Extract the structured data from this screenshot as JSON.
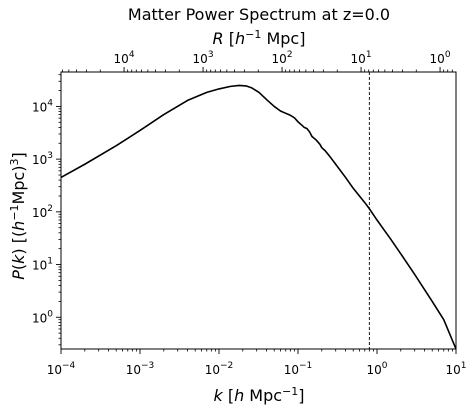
{
  "chart_data": {
    "type": "line",
    "title": "Matter Power Spectrum at z=0.0",
    "xlabel": {
      "base": "k [",
      "italic": "h",
      "rest": " Mpc",
      "sup": "−1",
      "end": "]"
    },
    "ylabel": {
      "a": "P(k) [(",
      "italic": "h",
      "sup1": "−1",
      "b": "Mpc)",
      "sup2": "3",
      "end": "]"
    },
    "top_xlabel": {
      "italic": "R",
      "a": " [",
      "italic2": "h",
      "sup": "−1",
      "b": " Mpc]"
    },
    "xscale": "log",
    "yscale": "log",
    "xlim": [
      0.0001,
      10
    ],
    "ylim": [
      0.25,
      45000
    ],
    "x_ticks": [
      {
        "value": 0.0001,
        "base": "10",
        "exp": "−4"
      },
      {
        "value": 0.001,
        "base": "10",
        "exp": "−3"
      },
      {
        "value": 0.01,
        "base": "10",
        "exp": "−2"
      },
      {
        "value": 0.1,
        "base": "10",
        "exp": "−1"
      },
      {
        "value": 1,
        "base": "10",
        "exp": "0"
      },
      {
        "value": 10,
        "base": "10",
        "exp": "1"
      }
    ],
    "y_ticks": [
      {
        "value": 1,
        "base": "10",
        "exp": "0"
      },
      {
        "value": 10,
        "base": "10",
        "exp": "1"
      },
      {
        "value": 100,
        "base": "10",
        "exp": "2"
      },
      {
        "value": 1000,
        "base": "10",
        "exp": "3"
      },
      {
        "value": 10000,
        "base": "10",
        "exp": "4"
      }
    ],
    "top_ticks": [
      {
        "R": 10000,
        "base": "10",
        "exp": "4"
      },
      {
        "R": 1000,
        "base": "10",
        "exp": "3"
      },
      {
        "R": 100,
        "base": "10",
        "exp": "2"
      },
      {
        "R": 10,
        "base": "10",
        "exp": "1"
      },
      {
        "R": 1,
        "base": "10",
        "exp": "0"
      }
    ],
    "top_axis_relation": "R = 2π / k",
    "vertical_line": {
      "x": 0.8,
      "style": "dashed"
    },
    "grid": false,
    "legend": "none",
    "series": [
      {
        "x": [
          0.0001,
          0.0002,
          0.0005,
          0.001,
          0.002,
          0.004,
          0.007,
          0.01,
          0.014,
          0.018,
          0.022,
          0.026,
          0.032,
          0.04,
          0.05,
          0.06,
          0.07,
          0.08,
          0.09,
          0.1,
          0.11,
          0.12,
          0.13,
          0.14,
          0.15,
          0.17,
          0.19,
          0.2,
          0.22,
          0.25,
          0.3,
          0.4,
          0.5,
          0.7,
          0.8,
          1,
          1.5,
          2,
          3,
          5,
          7,
          10
        ],
        "y": [
          450,
          800,
          1800,
          3500,
          7000,
          13000,
          18500,
          21500,
          24000,
          25000,
          24500,
          22500,
          18500,
          13500,
          10000,
          8200,
          7400,
          6800,
          6100,
          5100,
          4500,
          4000,
          3800,
          3300,
          2700,
          2300,
          1900,
          1650,
          1450,
          1150,
          800,
          450,
          280,
          150,
          115,
          70,
          30,
          16,
          6.5,
          2,
          0.9,
          0.25
        ],
        "color": "#000000"
      }
    ]
  }
}
